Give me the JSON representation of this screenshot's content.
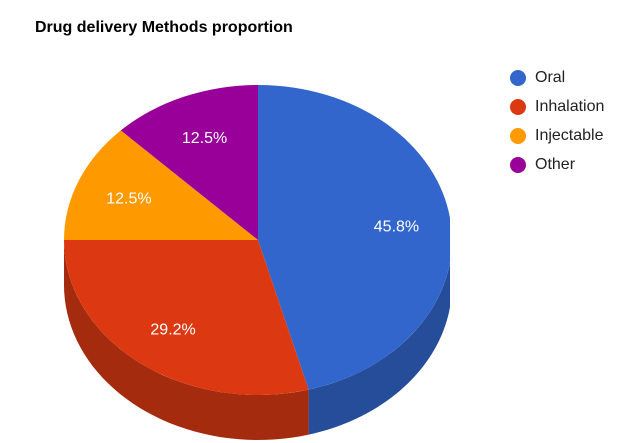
{
  "chart_data": {
    "type": "pie",
    "title": "Drug delivery Methods proportion",
    "is3D": true,
    "legend_position": "right",
    "slices": [
      {
        "label": "Oral",
        "value": 45.8,
        "display": "45.8%",
        "color": "#3366cc",
        "side_color": "#264d99"
      },
      {
        "label": "Inhalation",
        "value": 29.2,
        "display": "29.2%",
        "color": "#dc3912",
        "side_color": "#a52b0e"
      },
      {
        "label": "Injectable",
        "value": 12.5,
        "display": "12.5%",
        "color": "#ff9900",
        "side_color": "#bf7300"
      },
      {
        "label": "Other",
        "value": 12.5,
        "display": "12.5%",
        "color": "#990099",
        "side_color": "#730073"
      }
    ]
  }
}
